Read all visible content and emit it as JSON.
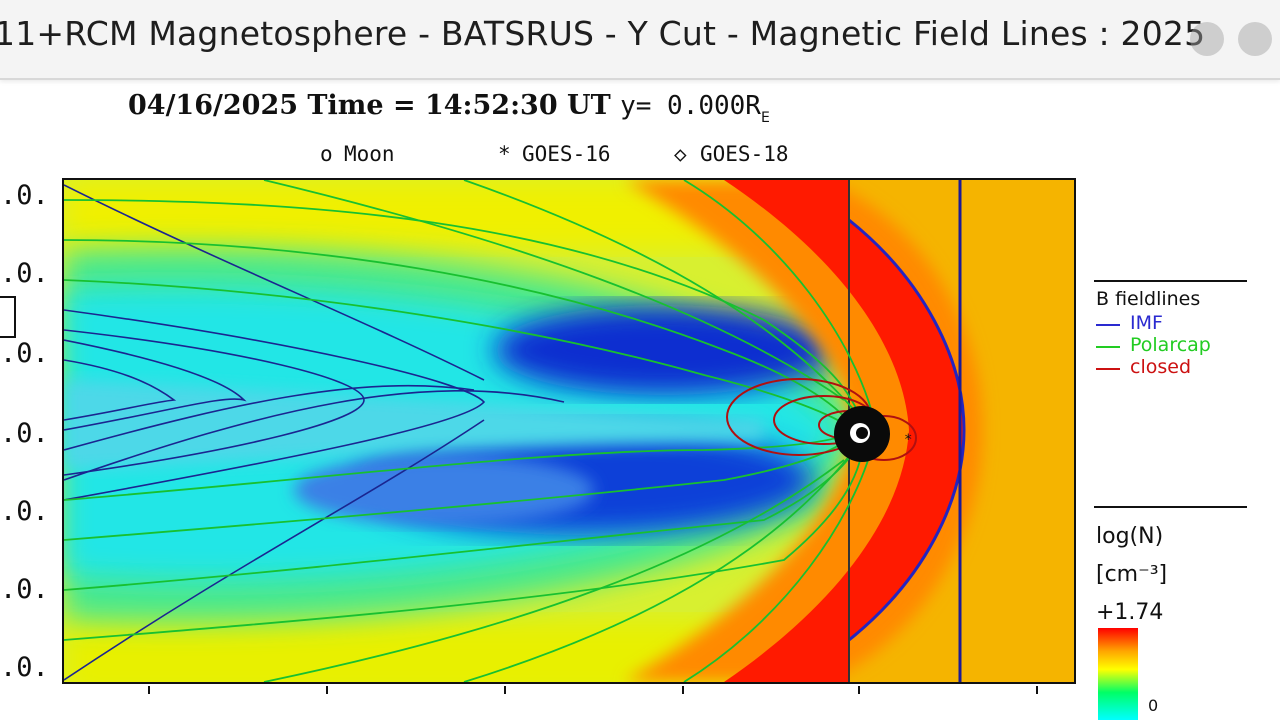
{
  "window": {
    "title": "11+RCM Magnetosphere - BATSRUS - Y Cut - Magnetic Field Lines : 2025"
  },
  "header": {
    "date": "04/16/2025",
    "time_label": "Time",
    "time_value": "14:52:30",
    "time_unit": "UT",
    "y_label": "y= 0.000R",
    "y_sub": "E"
  },
  "markers_legend": {
    "moon": "Moon",
    "moon_symbol": "o",
    "goes16": "GOES-16",
    "goes16_symbol": "*",
    "goes18": "GOES-18",
    "goes18_symbol": "◇"
  },
  "y_ticks": [
    ".0.",
    ".0.",
    ".0.",
    ".0.",
    ".0.",
    ".0.",
    ".0."
  ],
  "fieldline_legend": {
    "title": "B fieldlines",
    "entries": [
      {
        "label": "IMF",
        "color": "#2a2ad0"
      },
      {
        "label": "Polarcap",
        "color": "#22cc22"
      },
      {
        "label": "closed",
        "color": "#cc1111"
      }
    ]
  },
  "colorbar": {
    "title": "log(N)",
    "unit": "[cm⁻³]",
    "max_label": "+1.74",
    "min_label": "0"
  },
  "colors": {
    "sheath": "#ff1a00",
    "solar_wind": "#f5b400",
    "lobe_low": "#0033cc"
  }
}
